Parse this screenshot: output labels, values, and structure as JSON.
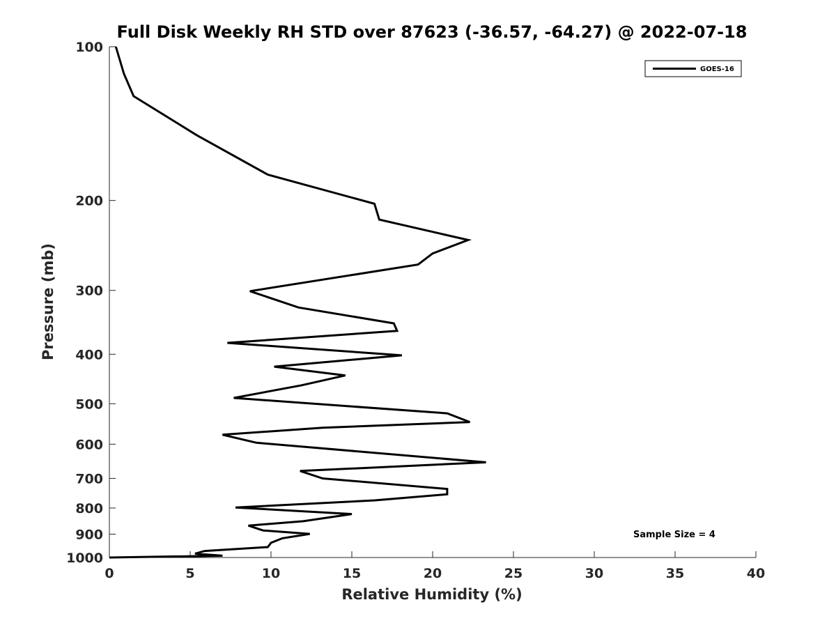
{
  "chart_data": {
    "type": "line",
    "title": "Full Disk Weekly RH STD over 87623 (-36.57, -64.27) @ 2022-07-18",
    "xlabel": "Relative Humidity (%)",
    "ylabel": "Pressure (mb)",
    "xlim": [
      0,
      40
    ],
    "ylim": [
      100,
      1000
    ],
    "y_scale": "log",
    "y_reversed": true,
    "grid": false,
    "x_ticks": [
      0,
      5,
      10,
      15,
      20,
      25,
      30,
      35,
      40
    ],
    "x_tick_labels": [
      "0",
      "5",
      "10",
      "15",
      "20",
      "25",
      "30",
      "35",
      "40"
    ],
    "y_ticks": [
      100,
      200,
      300,
      400,
      500,
      600,
      700,
      800,
      900,
      1000
    ],
    "y_tick_labels": [
      "100",
      "200",
      "300",
      "400",
      "500",
      "600",
      "700",
      "800",
      "900",
      "1000"
    ],
    "legend": {
      "position": "top-right",
      "entries": [
        "GOES-16"
      ]
    },
    "annotation": "Sample Size = 4",
    "series": [
      {
        "name": "GOES-16",
        "color": "#000000",
        "x": [
          0.4,
          0.9,
          1.5,
          5.4,
          9.8,
          16.4,
          16.7,
          22.2,
          20.0,
          19.1,
          8.7,
          11.7,
          17.6,
          17.8,
          7.3,
          18.1,
          10.2,
          14.6,
          11.9,
          7.7,
          20.9,
          22.3,
          13.2,
          7.0,
          9.1,
          23.3,
          11.8,
          13.2,
          20.9,
          20.9,
          16.4,
          7.8,
          15.0,
          12.0,
          8.6,
          9.5,
          12.4,
          10.7,
          10.0,
          9.8,
          5.9,
          5.3,
          7.0,
          0.0
        ],
        "y": [
          100,
          113,
          125,
          149,
          178,
          203,
          218,
          239,
          254,
          267,
          301,
          324,
          348,
          360,
          380,
          402,
          423,
          440,
          460,
          487,
          522,
          543,
          557,
          575,
          596,
          651,
          677,
          700,
          734,
          752,
          773,
          798,
          822,
          849,
          866,
          885,
          899,
          917,
          936,
          954,
          971,
          983,
          992,
          1000
        ]
      }
    ]
  }
}
